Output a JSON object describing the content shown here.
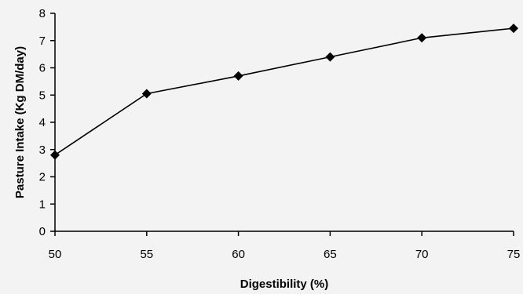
{
  "chart_data": {
    "type": "line",
    "title": "",
    "xlabel": "Digestibility (%)",
    "ylabel": "Pasture Intake (Kg DM/day)",
    "x": [
      50,
      55,
      60,
      65,
      70,
      75
    ],
    "series": [
      {
        "name": "",
        "values": [
          2.8,
          5.05,
          5.7,
          6.4,
          7.1,
          7.45
        ]
      }
    ],
    "xlim": [
      50,
      75
    ],
    "ylim": [
      0,
      8
    ],
    "xticks": [
      "50",
      "55",
      "60",
      "65",
      "70",
      "75"
    ],
    "yticks": [
      "0",
      "1",
      "2",
      "3",
      "4",
      "5",
      "6",
      "7",
      "8"
    ],
    "grid": false,
    "legend": "none",
    "line_color": "#000000",
    "marker": "diamond"
  }
}
